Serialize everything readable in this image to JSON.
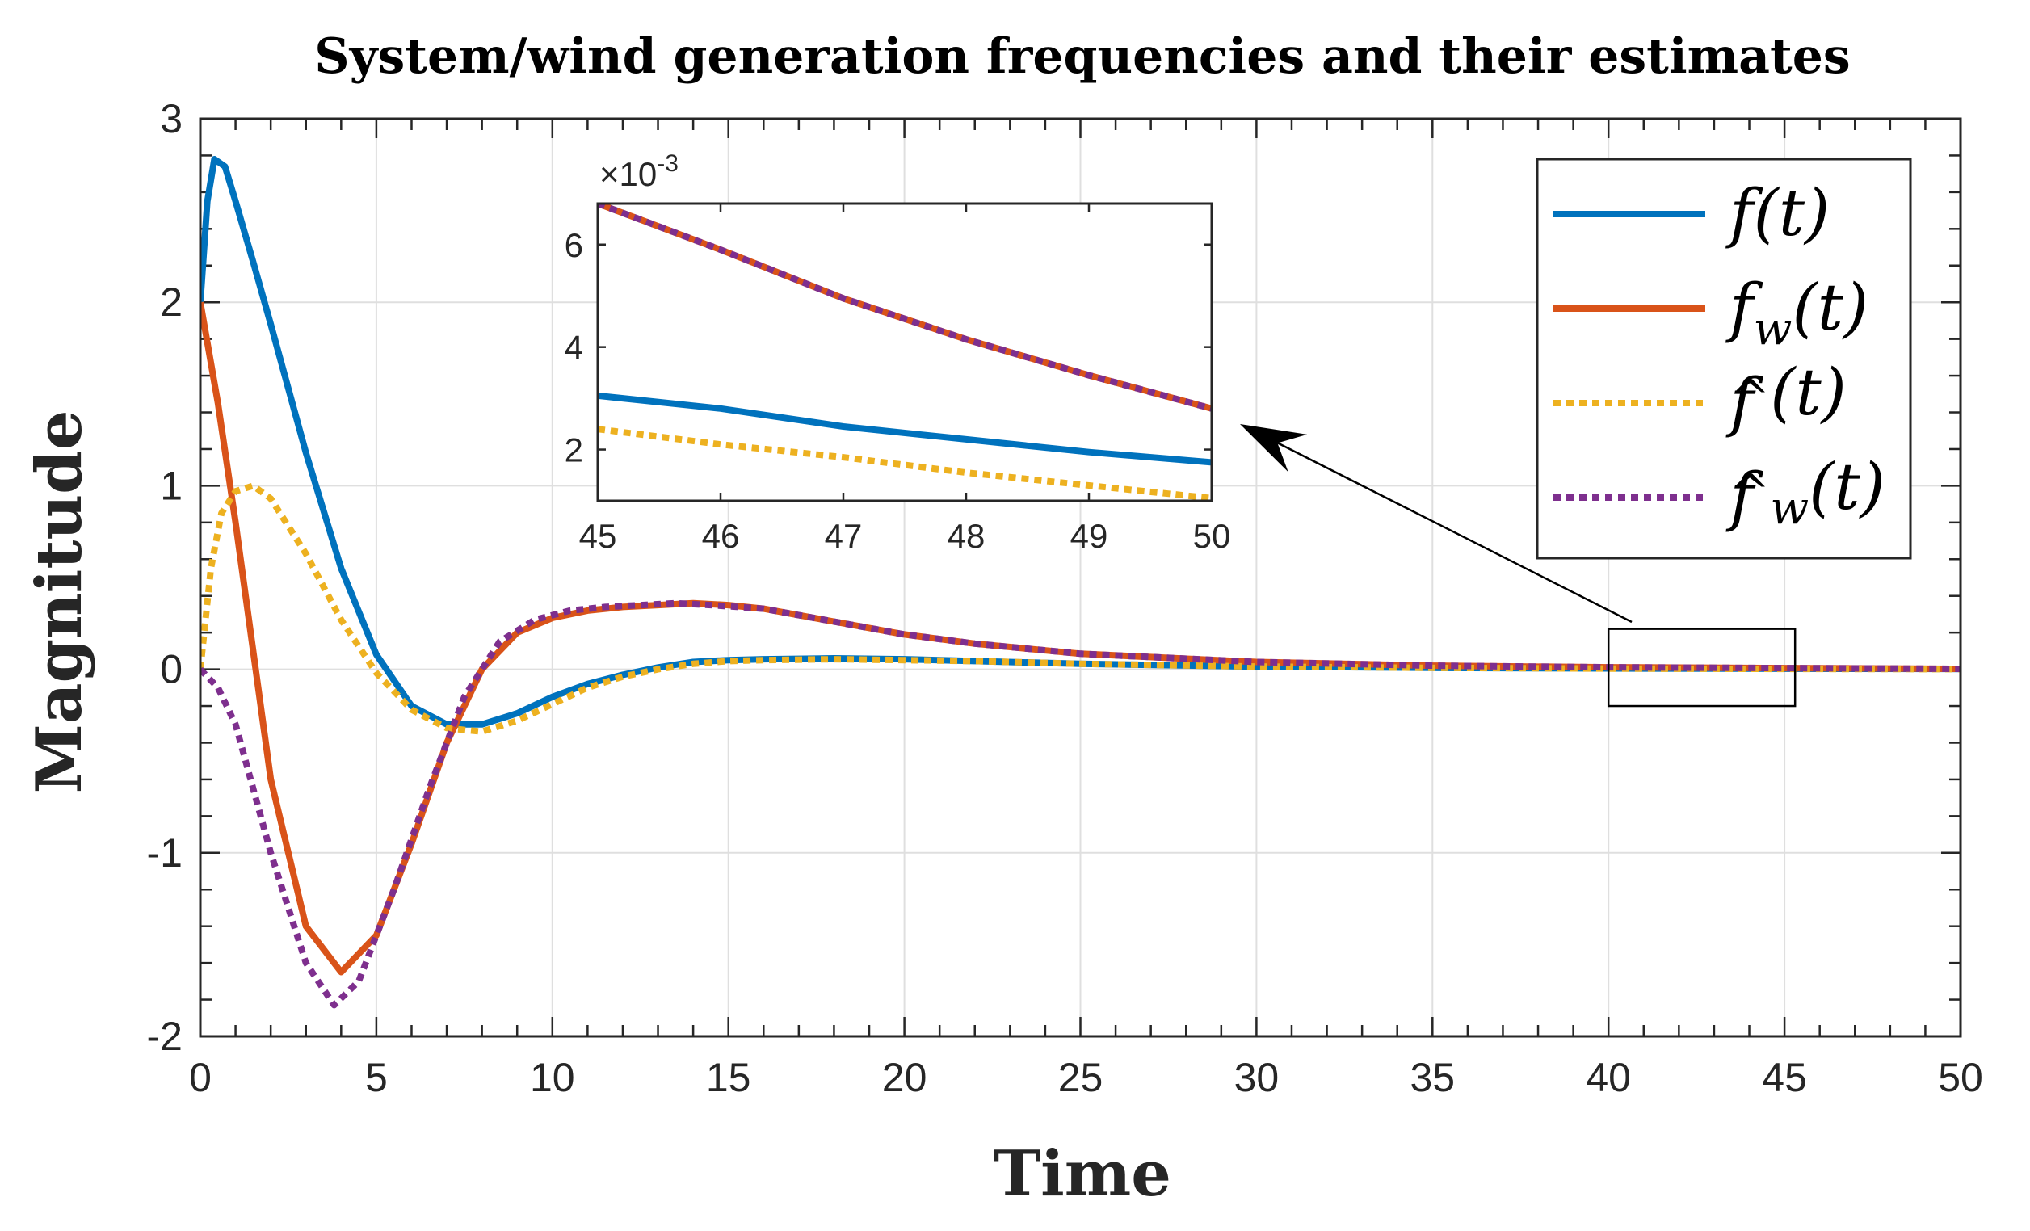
{
  "chart_data": [
    {
      "type": "line",
      "title": "System/wind generation frequencies and their estimates",
      "xlabel": "Time",
      "ylabel": "Magnitude",
      "xlim": [
        0,
        50
      ],
      "ylim": [
        -2,
        3
      ],
      "xticks": [
        0,
        5,
        10,
        15,
        20,
        25,
        30,
        35,
        40,
        45,
        50
      ],
      "yticks": [
        -2,
        -1,
        0,
        1,
        2,
        3
      ],
      "xtick_labels": [
        "0",
        "5",
        "10",
        "15",
        "20",
        "25",
        "30",
        "35",
        "40",
        "45",
        "50"
      ],
      "ytick_labels": [
        "-2",
        "-1",
        "0",
        "1",
        "2",
        "3"
      ],
      "grid": true,
      "legend_position": "top-right",
      "zoom_box": {
        "x": [
          40,
          45.3
        ],
        "y": [
          -0.2,
          0.22
        ]
      },
      "series": [
        {
          "name": "f(t)",
          "color": "#0072BD",
          "style": "solid",
          "x": [
            0,
            0.2,
            0.4,
            0.7,
            1,
            1.5,
            2,
            3,
            4,
            5,
            6,
            7,
            8,
            9,
            10,
            11,
            12,
            13,
            14,
            15,
            16,
            18,
            20,
            22,
            25,
            30,
            35,
            40,
            45,
            50
          ],
          "y": [
            2.0,
            2.55,
            2.78,
            2.74,
            2.55,
            2.22,
            1.88,
            1.18,
            0.55,
            0.08,
            -0.2,
            -0.3,
            -0.3,
            -0.24,
            -0.15,
            -0.08,
            -0.03,
            0.01,
            0.04,
            0.05,
            0.055,
            0.06,
            0.055,
            0.045,
            0.03,
            0.015,
            0.008,
            0.005,
            0.003,
            0.0018
          ]
        },
        {
          "name": "f_w(t)",
          "color": "#D95319",
          "style": "solid",
          "x": [
            0,
            0.5,
            1,
            2,
            3,
            4,
            5,
            6,
            7,
            8,
            9,
            10,
            11,
            12,
            13,
            14,
            15,
            16,
            18,
            20,
            22,
            25,
            30,
            35,
            40,
            45,
            50
          ],
          "y": [
            2.0,
            1.45,
            0.8,
            -0.6,
            -1.4,
            -1.65,
            -1.45,
            -0.95,
            -0.4,
            0.0,
            0.2,
            0.28,
            0.32,
            0.34,
            0.35,
            0.36,
            0.35,
            0.33,
            0.26,
            0.19,
            0.14,
            0.085,
            0.04,
            0.02,
            0.011,
            0.0068,
            0.0028
          ]
        },
        {
          "name": "f̂(t)",
          "color": "#EDB120",
          "style": "dotted",
          "x": [
            0,
            0.3,
            0.6,
            1,
            1.5,
            2,
            3,
            4,
            5,
            6,
            7,
            8,
            9,
            10,
            11,
            12,
            13,
            14,
            15,
            16,
            18,
            20,
            22,
            25,
            30,
            35,
            40,
            45,
            50
          ],
          "y": [
            0.0,
            0.55,
            0.85,
            0.97,
            1.0,
            0.93,
            0.63,
            0.27,
            -0.02,
            -0.22,
            -0.32,
            -0.34,
            -0.28,
            -0.19,
            -0.1,
            -0.04,
            0.0,
            0.03,
            0.045,
            0.05,
            0.055,
            0.05,
            0.045,
            0.03,
            0.015,
            0.008,
            0.004,
            0.0024,
            0.001
          ]
        },
        {
          "name": "f̂_w(t)",
          "color": "#7E2F8E",
          "style": "dotted",
          "x": [
            0,
            0.5,
            1,
            2,
            3,
            3.8,
            4.5,
            5.5,
            6.5,
            7.5,
            8.5,
            9.5,
            10.5,
            11.5,
            12.5,
            13.5,
            14.5,
            16,
            18,
            20,
            22,
            25,
            30,
            35,
            40,
            45,
            50
          ],
          "y": [
            0.0,
            -0.1,
            -0.3,
            -1.0,
            -1.6,
            -1.83,
            -1.7,
            -1.2,
            -0.65,
            -0.15,
            0.15,
            0.27,
            0.32,
            0.34,
            0.35,
            0.36,
            0.35,
            0.33,
            0.26,
            0.19,
            0.14,
            0.085,
            0.04,
            0.02,
            0.011,
            0.0068,
            0.0028
          ]
        }
      ]
    },
    {
      "type": "line",
      "title": "",
      "xlim": [
        45,
        50
      ],
      "ylim": [
        1.0,
        6.8
      ],
      "xticks": [
        45,
        46,
        47,
        48,
        49,
        50
      ],
      "yticks": [
        2,
        4,
        6
      ],
      "xtick_labels": [
        "45",
        "46",
        "47",
        "48",
        "49",
        "50"
      ],
      "ytick_labels": [
        "2",
        "4",
        "6"
      ],
      "y_exponent": "×10",
      "y_exponent_power": "-3",
      "series": [
        {
          "name": "f(t)",
          "color": "#0072BD",
          "style": "solid",
          "x": [
            45,
            46,
            47,
            48,
            49,
            50
          ],
          "y": [
            3.05,
            2.8,
            2.45,
            2.2,
            1.95,
            1.75
          ]
        },
        {
          "name": "f_w(t)",
          "color": "#D95319",
          "style": "solid",
          "x": [
            45,
            46,
            47,
            48,
            49,
            50
          ],
          "y": [
            6.8,
            5.9,
            4.95,
            4.15,
            3.45,
            2.8
          ]
        },
        {
          "name": "f̂(t)",
          "color": "#EDB120",
          "style": "dotted",
          "x": [
            45,
            46,
            47,
            48,
            49,
            50
          ],
          "y": [
            2.4,
            2.1,
            1.85,
            1.55,
            1.3,
            1.05
          ]
        },
        {
          "name": "f̂_w(t)",
          "color": "#7E2F8E",
          "style": "dotted",
          "x": [
            45,
            46,
            47,
            48,
            49,
            50
          ],
          "y": [
            6.8,
            5.9,
            4.95,
            4.15,
            3.45,
            2.8
          ]
        }
      ]
    }
  ],
  "legend": {
    "entries": [
      {
        "label": "f(t)",
        "color": "#0072BD",
        "style": "solid"
      },
      {
        "label": "f_w(t)",
        "color": "#D95319",
        "style": "solid"
      },
      {
        "label": "f̂(t)",
        "color": "#EDB120",
        "style": "dotted"
      },
      {
        "label": "f̂_w(t)",
        "color": "#7E2F8E",
        "style": "dotted"
      }
    ]
  }
}
